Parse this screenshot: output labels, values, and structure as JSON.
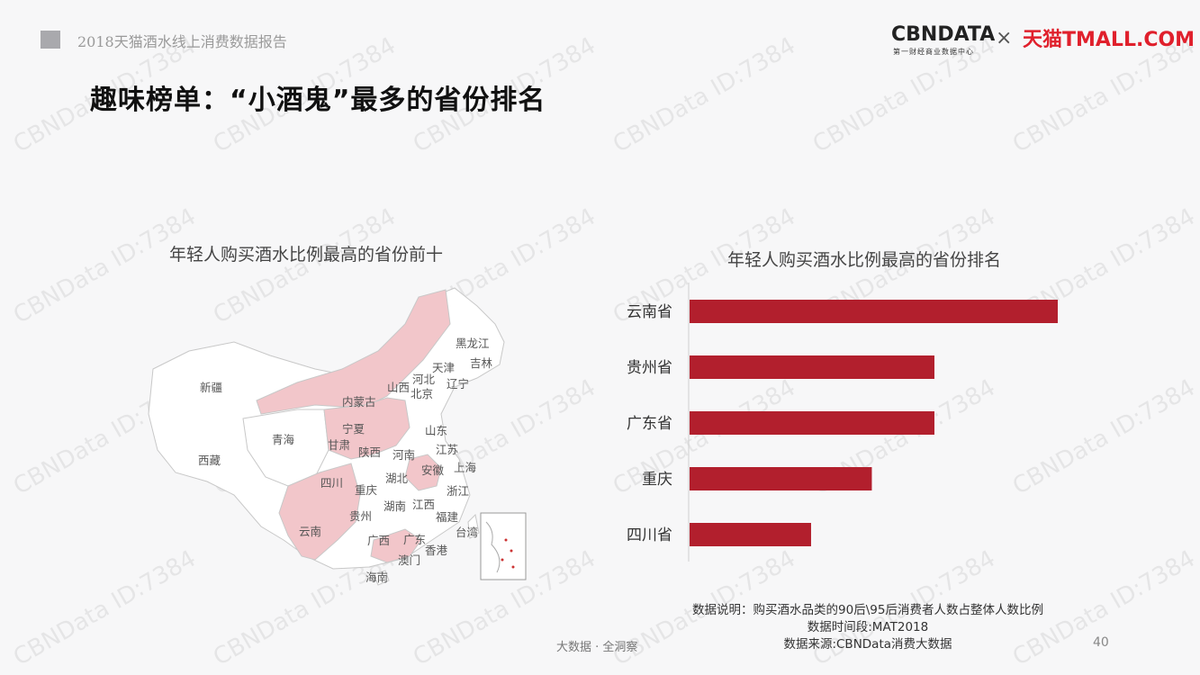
{
  "header": {
    "report_name": "2018天猫酒水线上消费数据报告",
    "title": "趣味榜单：“小酒鬼”最多的省份排名",
    "logo_cbndata": "CBNDATA",
    "logo_cbndata_sub": "第一财经商业数据中心",
    "logo_separator": "×",
    "logo_tmall": "天猫TMALL.COM"
  },
  "watermark_text": "CBNData ID:7384",
  "map": {
    "title": "年轻人购买酒水比例最高的省份前十",
    "highlight_color": "#f2c6ca",
    "base_color": "#ffffff",
    "province_labels": [
      "黑龙江",
      "吉林",
      "天津",
      "河北",
      "辽宁",
      "北京",
      "山西",
      "新疆",
      "内蒙古",
      "宁夏",
      "山东",
      "青海",
      "甘肃",
      "陕西",
      "河南",
      "江苏",
      "西藏",
      "安徽",
      "上海",
      "四川",
      "重庆",
      "湖北",
      "浙江",
      "江西",
      "贵州",
      "湖南",
      "福建",
      "云南",
      "广西",
      "广东",
      "台湾",
      "香港",
      "澳门",
      "海南"
    ]
  },
  "chart_data": {
    "type": "bar",
    "orientation": "horizontal",
    "title": "年轻人购买酒水比例最高的省份排名",
    "categories": [
      "云南省",
      "贵州省",
      "广东省",
      "重庆",
      "四川省"
    ],
    "values": [
      100,
      66.5,
      66.5,
      49.5,
      33
    ],
    "bar_color": "#b21f2d",
    "value_axis_labels_shown": false
  },
  "notes": {
    "line1": "数据说明：购买酒水品类的90后\\95后消费者人数占整体人数比例",
    "line2": "数据时间段:MAT2018",
    "line3": "数据来源:CBNData消费大数据"
  },
  "footer": {
    "center": "大数据 · 全洞察",
    "page_number": "40"
  }
}
